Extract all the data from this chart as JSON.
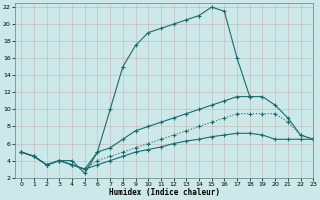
{
  "xlabel": "Humidex (Indice chaleur)",
  "bg_color": "#cce8e8",
  "line_color": "#1a6b6b",
  "xlim": [
    -0.5,
    23
  ],
  "ylim": [
    2,
    22.5
  ],
  "xticks": [
    0,
    1,
    2,
    3,
    4,
    5,
    6,
    7,
    8,
    9,
    10,
    11,
    12,
    13,
    14,
    15,
    16,
    17,
    18,
    19,
    20,
    21,
    22,
    23
  ],
  "yticks": [
    2,
    4,
    6,
    8,
    10,
    12,
    14,
    16,
    18,
    20,
    22
  ],
  "lines": [
    {
      "x": [
        0,
        1,
        2,
        3,
        4,
        5,
        6,
        7,
        8,
        9,
        10,
        11,
        12,
        13,
        14,
        15,
        16,
        17,
        18
      ],
      "y": [
        5,
        4.5,
        3.5,
        4,
        4,
        2.5,
        5,
        10,
        15,
        17.5,
        19,
        19.5,
        20,
        20.5,
        21,
        22,
        21.5,
        16,
        11.5
      ],
      "style": "-",
      "marker": "+"
    },
    {
      "x": [
        0,
        1,
        2,
        3,
        4,
        5,
        6,
        7,
        8,
        9,
        10,
        11,
        12,
        13,
        14,
        15,
        16,
        17,
        18,
        19,
        20,
        21,
        22,
        23
      ],
      "y": [
        5,
        4.5,
        3.5,
        4,
        3.5,
        3,
        5,
        5.5,
        6.5,
        7.5,
        8,
        8.5,
        9,
        9.5,
        10,
        10.5,
        11,
        11.5,
        11.5,
        11.5,
        10.5,
        9,
        7,
        6.5
      ],
      "style": "-",
      "marker": "+"
    },
    {
      "x": [
        0,
        1,
        2,
        3,
        4,
        5,
        6,
        7,
        8,
        9,
        10,
        11,
        12,
        13,
        14,
        15,
        16,
        17,
        18,
        19,
        20,
        21,
        22,
        23
      ],
      "y": [
        5,
        4.5,
        3.5,
        4,
        3.5,
        3,
        4,
        4.5,
        5,
        5.5,
        6,
        6.5,
        7,
        7.5,
        8,
        8.5,
        9,
        9.5,
        9.5,
        9.5,
        9.5,
        8.5,
        7,
        6.5
      ],
      "style": ":",
      "marker": "+"
    },
    {
      "x": [
        0,
        1,
        2,
        3,
        4,
        5,
        6,
        7,
        8,
        9,
        10,
        11,
        12,
        13,
        14,
        15,
        16,
        17,
        18,
        19,
        20,
        21,
        22,
        23
      ],
      "y": [
        5,
        4.5,
        3.5,
        4,
        3.5,
        3,
        3.5,
        4,
        4.5,
        5,
        5.3,
        5.6,
        6,
        6.3,
        6.5,
        6.8,
        7,
        7.2,
        7.2,
        7,
        6.5,
        6.5,
        6.5,
        6.5
      ],
      "style": "-",
      "marker": "+"
    }
  ]
}
